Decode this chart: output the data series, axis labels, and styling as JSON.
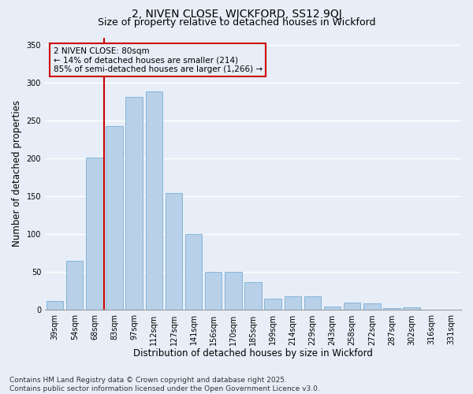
{
  "title": "2, NIVEN CLOSE, WICKFORD, SS12 9QJ",
  "subtitle": "Size of property relative to detached houses in Wickford",
  "xlabel": "Distribution of detached houses by size in Wickford",
  "ylabel": "Number of detached properties",
  "categories": [
    "39sqm",
    "54sqm",
    "68sqm",
    "83sqm",
    "97sqm",
    "112sqm",
    "127sqm",
    "141sqm",
    "156sqm",
    "170sqm",
    "185sqm",
    "199sqm",
    "214sqm",
    "229sqm",
    "243sqm",
    "258sqm",
    "272sqm",
    "287sqm",
    "302sqm",
    "316sqm",
    "331sqm"
  ],
  "values": [
    12,
    65,
    201,
    243,
    281,
    289,
    155,
    100,
    50,
    50,
    37,
    15,
    18,
    18,
    5,
    10,
    9,
    3,
    4,
    1,
    1
  ],
  "bar_color": "#b8d0e8",
  "bar_edge_color": "#7aaed4",
  "background_color": "#e8eef7",
  "grid_color": "#ffffff",
  "vline_color": "#cc0000",
  "vline_pos": 2.5,
  "annotation_title": "2 NIVEN CLOSE: 80sqm",
  "annotation_line1": "← 14% of detached houses are smaller (214)",
  "annotation_line2": "85% of semi-detached houses are larger (1,266) →",
  "annotation_box_color": "#cc0000",
  "ylim": [
    0,
    360
  ],
  "yticks": [
    0,
    50,
    100,
    150,
    200,
    250,
    300,
    350
  ],
  "footnote": "Contains HM Land Registry data © Crown copyright and database right 2025.\nContains public sector information licensed under the Open Government Licence v3.0.",
  "title_fontsize": 10,
  "subtitle_fontsize": 9,
  "tick_fontsize": 7,
  "ylabel_fontsize": 8.5,
  "xlabel_fontsize": 8.5,
  "footnote_fontsize": 6.5
}
